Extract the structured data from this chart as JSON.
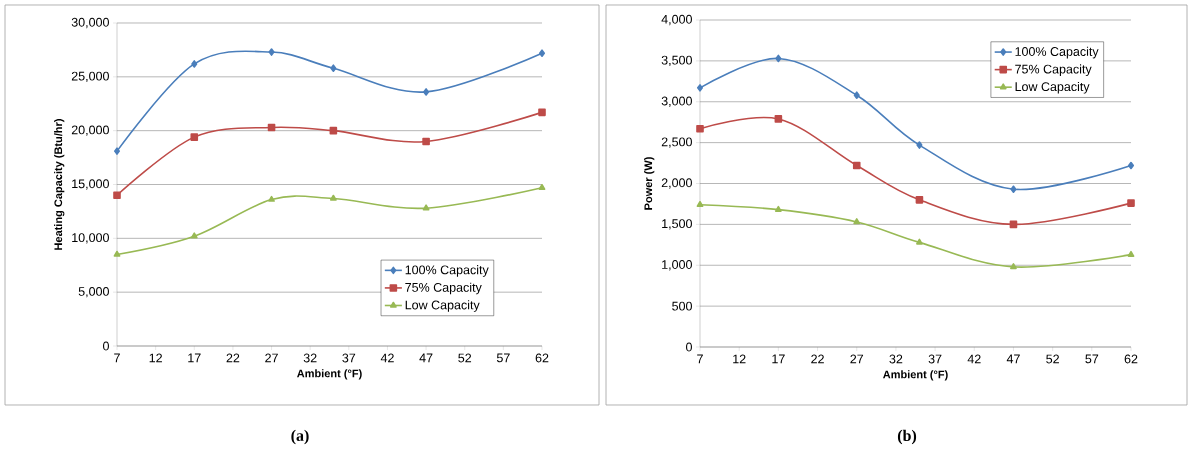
{
  "chart_data": [
    {
      "type": "line",
      "xlabel": "Ambient (°F)",
      "ylabel": "Heating Capacity (Btu/hr)",
      "annotations": [
        "(a)"
      ],
      "x": [
        7,
        17,
        27,
        35,
        47,
        62
      ],
      "xlim": [
        7,
        62
      ],
      "xticks": [
        7,
        12,
        17,
        22,
        27,
        32,
        37,
        42,
        47,
        52,
        57,
        62
      ],
      "ylim": [
        0,
        30000
      ],
      "yticks": [
        {
          "value": 0,
          "label": "0"
        },
        {
          "value": 5000,
          "label": "5,000"
        },
        {
          "value": 10000,
          "label": "10,000"
        },
        {
          "value": 15000,
          "label": "15,000"
        },
        {
          "value": 20000,
          "label": "20,000"
        },
        {
          "value": 25000,
          "label": "25,000"
        },
        {
          "value": 30000,
          "label": "30,000"
        }
      ],
      "grid": "y",
      "legend": "bottom right",
      "series": [
        {
          "name": "100% Capacity",
          "color": "#4a7ebb",
          "marker": "diamond",
          "values": [
            18100,
            26200,
            27300,
            25800,
            23600,
            27200
          ]
        },
        {
          "name": "75% Capacity",
          "color": "#be4b48",
          "marker": "square",
          "values": [
            14000,
            19400,
            20300,
            20000,
            19000,
            21700
          ]
        },
        {
          "name": "Low Capacity",
          "color": "#98b954",
          "marker": "triangle",
          "values": [
            8500,
            10200,
            13600,
            13700,
            12800,
            14700
          ]
        }
      ]
    },
    {
      "type": "line",
      "xlabel": "Ambient (°F)",
      "ylabel": "Power (W)",
      "annotations": [
        "(b)"
      ],
      "x": [
        7,
        17,
        27,
        35,
        47,
        62
      ],
      "xlim": [
        7,
        62
      ],
      "xticks": [
        7,
        12,
        17,
        22,
        27,
        32,
        37,
        42,
        47,
        52,
        57,
        62
      ],
      "ylim": [
        0,
        4000
      ],
      "yticks": [
        {
          "value": 0,
          "label": "0"
        },
        {
          "value": 500,
          "label": "500"
        },
        {
          "value": 1000,
          "label": "1,000"
        },
        {
          "value": 1500,
          "label": "1,500"
        },
        {
          "value": 2000,
          "label": "2,000"
        },
        {
          "value": 2500,
          "label": "2,500"
        },
        {
          "value": 3000,
          "label": "3,000"
        },
        {
          "value": 3500,
          "label": "3,500"
        },
        {
          "value": 4000,
          "label": "4,000"
        }
      ],
      "grid": "y",
      "legend": "top right",
      "series": [
        {
          "name": "100% Capacity",
          "color": "#4a7ebb",
          "marker": "diamond",
          "values": [
            3170,
            3530,
            3080,
            2470,
            1930,
            2220
          ]
        },
        {
          "name": "75% Capacity",
          "color": "#be4b48",
          "marker": "square",
          "values": [
            2670,
            2790,
            2220,
            1800,
            1500,
            1760
          ]
        },
        {
          "name": "Low Capacity",
          "color": "#98b954",
          "marker": "triangle",
          "values": [
            1740,
            1680,
            1530,
            1280,
            980,
            1130
          ]
        }
      ]
    }
  ]
}
